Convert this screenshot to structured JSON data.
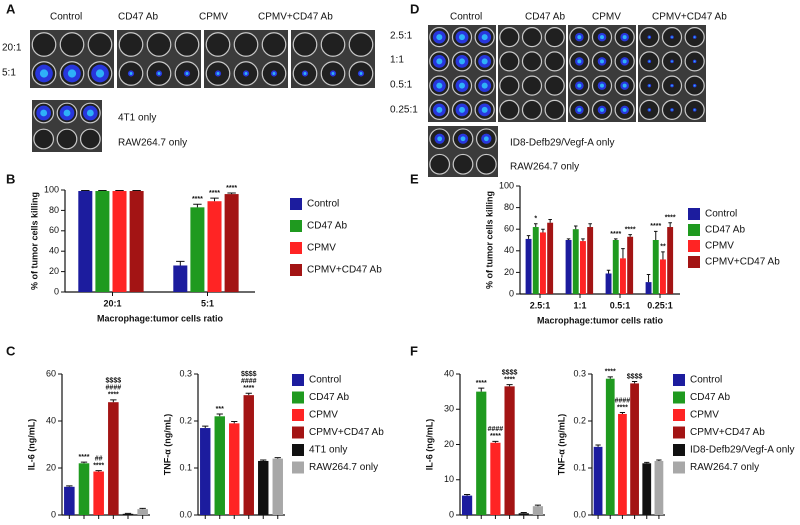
{
  "panel_letters": [
    "A",
    "B",
    "C",
    "D",
    "E",
    "F"
  ],
  "plates": {
    "A": {
      "columns": [
        "Control",
        "CD47 Ab",
        "CPMV",
        "CPMV+CD47 Ab"
      ],
      "rows": [
        "20:1",
        "5:1"
      ],
      "controls": [
        "4T1 only",
        "RAW264.7 only"
      ]
    },
    "D": {
      "columns": [
        "Control",
        "CD47 Ab",
        "CPMV",
        "CPMV+CD47 Ab"
      ],
      "rows": [
        "2.5:1",
        "1:1",
        "0.5:1",
        "0.25:1"
      ],
      "controls": [
        "ID8-Defb29/Vegf-A only",
        "RAW264.7 only"
      ]
    }
  },
  "chart_data": [
    {
      "type": "bar",
      "categories": [
        "20:1",
        "5:1"
      ],
      "xlabel": "Macrophage:tumor cells ratio",
      "ylabel": "% of tumor cells killing",
      "ylim": [
        0,
        100
      ],
      "yticks": [
        0,
        20,
        40,
        60,
        80,
        100
      ],
      "legend_position": "right",
      "series": [
        {
          "name": "Control",
          "color": "#1c1c9e",
          "values": [
            99,
            26
          ],
          "errors": [
            0.5,
            4
          ],
          "annotations": [
            null,
            null
          ]
        },
        {
          "name": "CD47 Ab",
          "color": "#1f9a1f",
          "values": [
            99,
            83
          ],
          "errors": [
            0.5,
            3
          ],
          "annotations": [
            null,
            "****"
          ]
        },
        {
          "name": "CPMV",
          "color": "#ff2424",
          "values": [
            99,
            89
          ],
          "errors": [
            0.5,
            3
          ],
          "annotations": [
            null,
            "****"
          ]
        },
        {
          "name": "CPMV+CD47 Ab",
          "color": "#a31414",
          "values": [
            99,
            96
          ],
          "errors": [
            0.5,
            1
          ],
          "annotations": [
            null,
            "****"
          ]
        }
      ]
    },
    {
      "type": "bar",
      "categories": [
        null,
        null,
        null,
        null,
        null,
        null
      ],
      "ylabel": "IL-6 (ng/mL)",
      "ylim": [
        0,
        60
      ],
      "yticks": [
        0,
        20,
        40,
        60
      ],
      "values": [
        12,
        22,
        18.5,
        48,
        0.5,
        2.5
      ],
      "errors": [
        0.4,
        0.5,
        0.4,
        1,
        0.2,
        0.3
      ],
      "colors": [
        "#1c1c9e",
        "#1f9a1f",
        "#ff2424",
        "#a31414",
        "#111111",
        "#a8a8a8"
      ],
      "annotations": [
        null,
        [
          "****"
        ],
        [
          "##",
          "****"
        ],
        [
          "$$$$",
          "####",
          "****"
        ],
        null,
        null
      ],
      "legend": [
        "Control",
        "CD47 Ab",
        "CPMV",
        "CPMV+CD47 Ab",
        "4T1 only",
        "RAW264.7 only"
      ],
      "legend_position": "right"
    },
    {
      "type": "bar",
      "categories": [
        null,
        null,
        null,
        null,
        null,
        null
      ],
      "ylabel": "TNF-α (ng/mL)",
      "ylim": [
        0,
        0.3
      ],
      "yticks": [
        {
          "value": 0,
          "label": "0.0"
        },
        0.1,
        0.2,
        0.3
      ],
      "values": [
        0.185,
        0.21,
        0.195,
        0.255,
        0.115,
        0.12
      ],
      "errors": [
        0.004,
        0.005,
        0.004,
        0.004,
        0.002,
        0.002
      ],
      "colors": [
        "#1c1c9e",
        "#1f9a1f",
        "#ff2424",
        "#a31414",
        "#111111",
        "#a8a8a8"
      ],
      "annotations": [
        null,
        [
          "***"
        ],
        null,
        [
          "$$$$",
          "####",
          "****"
        ],
        null,
        null
      ]
    },
    {
      "type": "bar",
      "categories": [
        "2.5:1",
        "1:1",
        "0.5:1",
        "0.25:1"
      ],
      "xlabel": "Macrophage:tumor cells ratio",
      "ylabel": "% of tumor cells killing",
      "ylim": [
        0,
        100
      ],
      "yticks": [
        0,
        20,
        40,
        60,
        80,
        100
      ],
      "legend_position": "right",
      "series": [
        {
          "name": "Control",
          "color": "#1c1c9e",
          "values": [
            51,
            50,
            19,
            11
          ],
          "errors": [
            3,
            1,
            3,
            7
          ],
          "annotations": [
            null,
            null,
            null,
            null
          ]
        },
        {
          "name": "CD47 Ab",
          "color": "#1f9a1f",
          "values": [
            62,
            60,
            50,
            50
          ],
          "errors": [
            3,
            3,
            1,
            8
          ],
          "annotations": [
            "*",
            null,
            "****",
            "****"
          ]
        },
        {
          "name": "CPMV",
          "color": "#ff2424",
          "values": [
            57,
            49,
            33,
            32
          ],
          "errors": [
            3,
            2,
            9,
            7
          ],
          "annotations": [
            null,
            null,
            null,
            "**"
          ]
        },
        {
          "name": "CPMV+CD47 Ab",
          "color": "#a31414",
          "values": [
            66,
            62,
            53,
            62
          ],
          "errors": [
            3,
            3,
            2,
            4
          ],
          "annotations": [
            null,
            null,
            "****",
            "****"
          ]
        }
      ]
    },
    {
      "type": "bar",
      "categories": [
        null,
        null,
        null,
        null,
        null,
        null
      ],
      "ylabel": "IL-6 (ng/mL)",
      "ylim": [
        0,
        40
      ],
      "yticks": [
        0,
        10,
        20,
        30,
        40
      ],
      "values": [
        5.5,
        35,
        20.5,
        36.5,
        0.5,
        2.5
      ],
      "errors": [
        0.3,
        1,
        0.4,
        0.5,
        0.2,
        0.3
      ],
      "colors": [
        "#1c1c9e",
        "#1f9a1f",
        "#ff2424",
        "#a31414",
        "#111111",
        "#a8a8a8"
      ],
      "annotations": [
        null,
        [
          "****"
        ],
        [
          "####",
          "****"
        ],
        [
          "$$$$",
          "****"
        ],
        null,
        null
      ],
      "legend": [
        "Control",
        "CD47 Ab",
        "CPMV",
        "CPMV+CD47 Ab",
        "ID8-Defb29/Vegf-A only",
        "RAW264.7 only"
      ],
      "legend_position": "right"
    },
    {
      "type": "bar",
      "categories": [
        null,
        null,
        null,
        null,
        null,
        null
      ],
      "ylabel": "TNF-α (ng/mL)",
      "ylim": [
        0,
        0.3
      ],
      "yticks": [
        {
          "value": 0,
          "label": "0.0"
        },
        0.1,
        0.2,
        0.3
      ],
      "values": [
        0.145,
        0.29,
        0.215,
        0.28,
        0.11,
        0.115
      ],
      "errors": [
        0.004,
        0.004,
        0.003,
        0.004,
        0.002,
        0.002
      ],
      "colors": [
        "#1c1c9e",
        "#1f9a1f",
        "#ff2424",
        "#a31414",
        "#111111",
        "#a8a8a8"
      ],
      "annotations": [
        null,
        [
          "****"
        ],
        [
          "####",
          "****"
        ],
        [
          "$$$$"
        ],
        null,
        null
      ]
    }
  ]
}
